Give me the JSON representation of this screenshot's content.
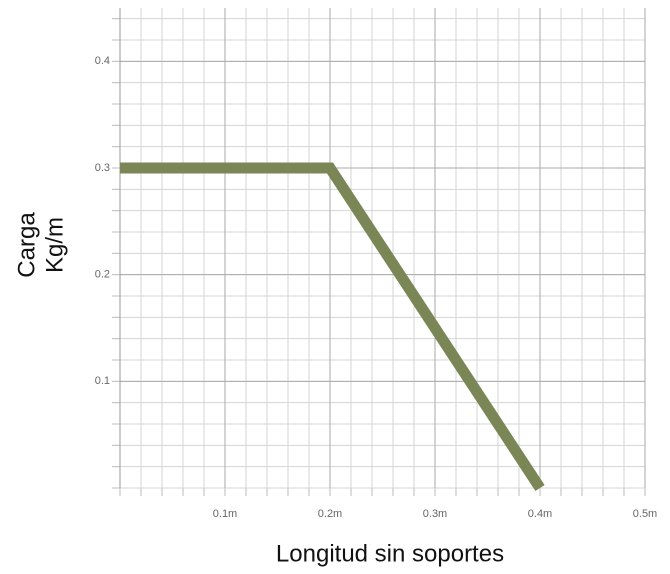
{
  "chart_data": {
    "type": "line",
    "x": [
      0,
      0.2,
      0.4
    ],
    "values": [
      0.3,
      0.3,
      0
    ],
    "color": "#7b8657",
    "xlabel": "Longitud sin soportes",
    "ylabel": [
      "Carga",
      "Kg/m"
    ],
    "xlim": [
      0,
      0.5
    ],
    "xticks": [
      {
        "value": 0.1,
        "label": "0.1m"
      },
      {
        "value": 0.2,
        "label": "0.2m"
      },
      {
        "value": 0.3,
        "label": "0.3m"
      },
      {
        "value": 0.4,
        "label": "0.4m"
      },
      {
        "value": 0.5,
        "label": "0.5m"
      }
    ],
    "ylim": [
      0,
      0.45
    ],
    "yticks": [
      0.1,
      0.2,
      0.3,
      0.4
    ],
    "grid": true
  }
}
